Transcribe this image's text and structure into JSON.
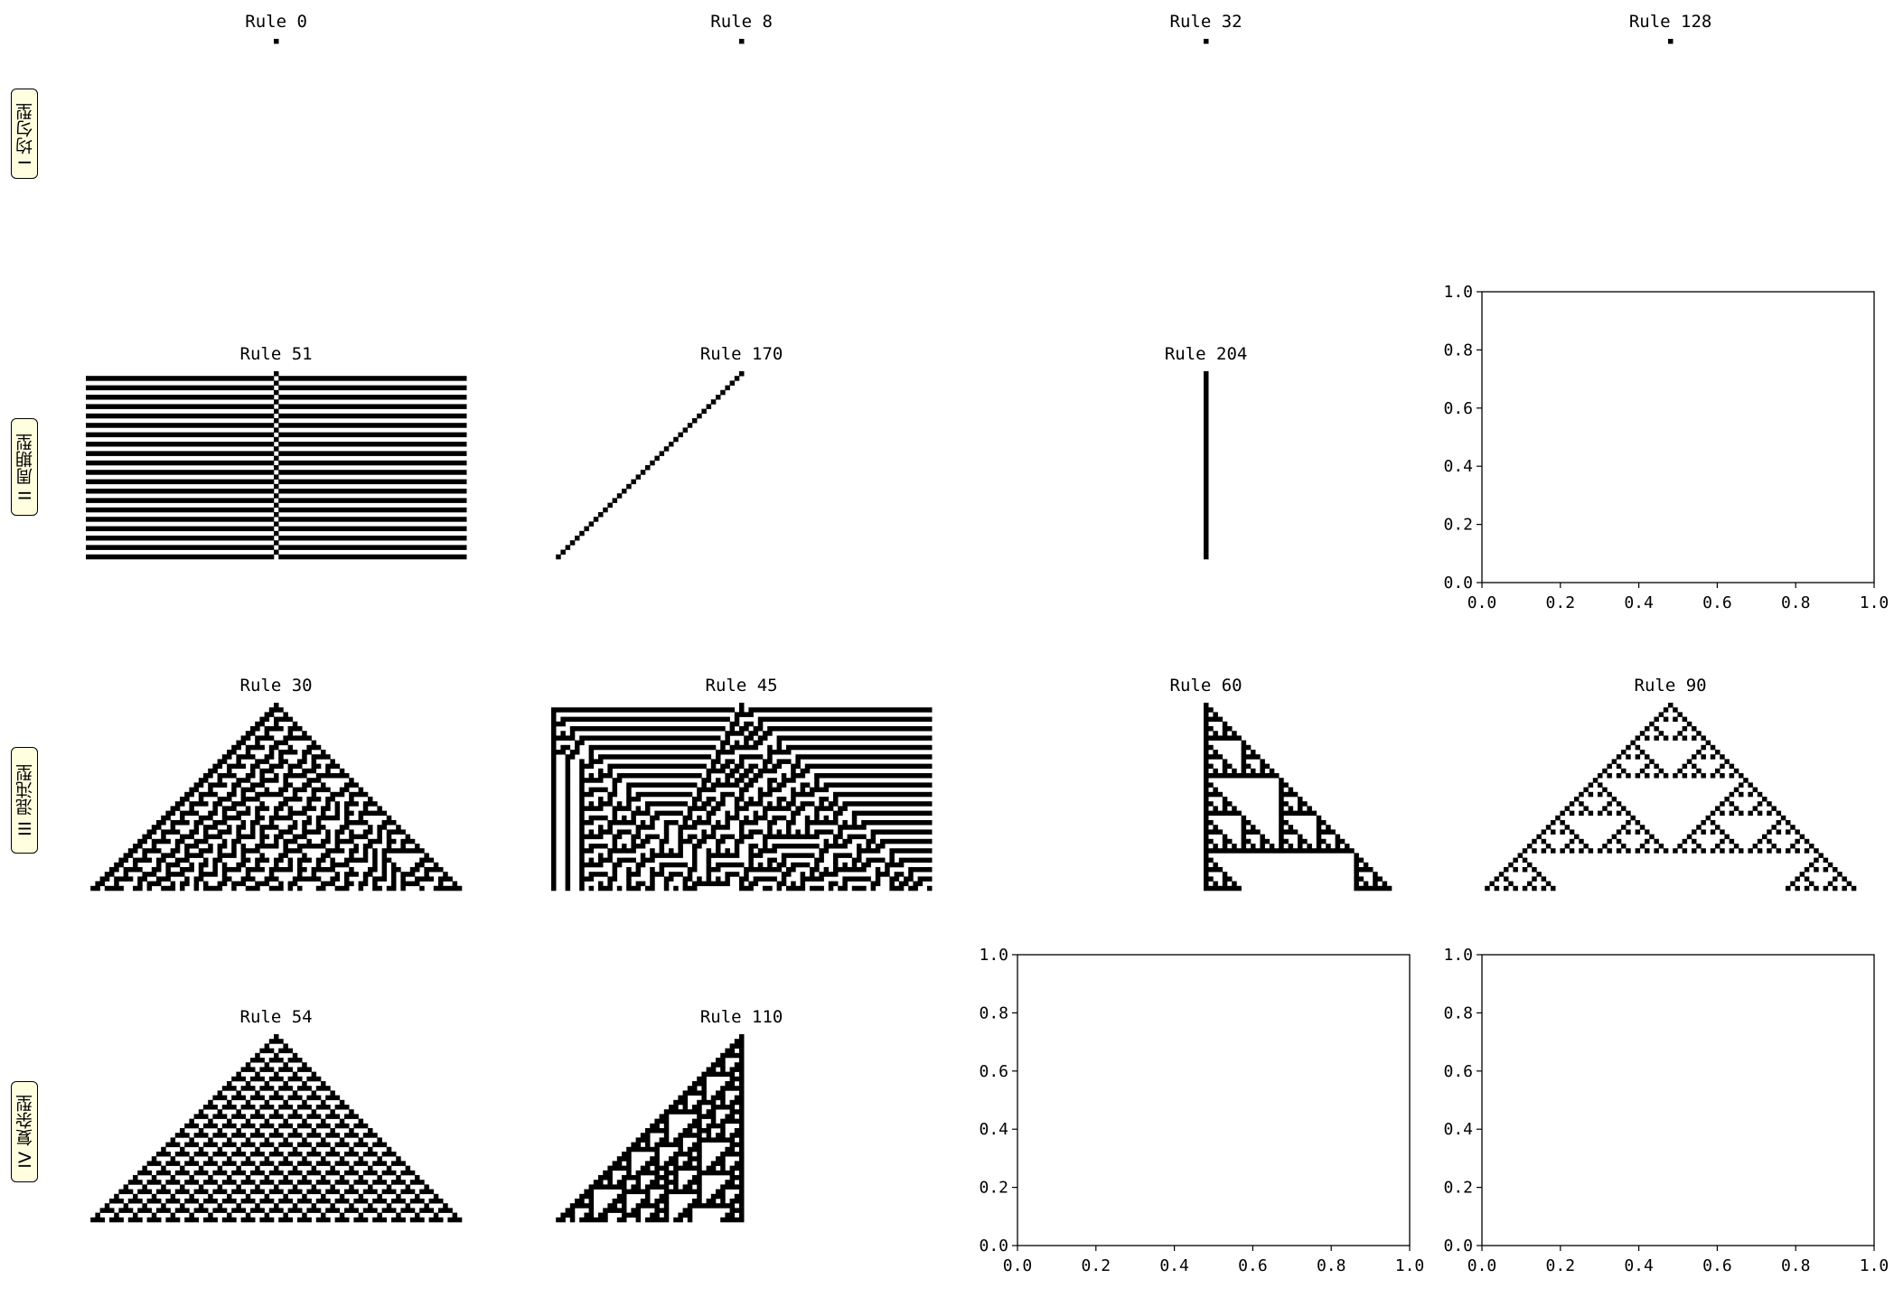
{
  "row_labels": [
    "I 均匀型",
    "II 周期型",
    "III 混沌型",
    "IV 复杂型"
  ],
  "chart_data": {
    "type": "cellular-automaton-grid",
    "generations": 40,
    "grid_width": 81,
    "initial_condition": "single cell",
    "panels": [
      {
        "title": "Rule 0",
        "rule": 0,
        "row": 0,
        "col": 0
      },
      {
        "title": "Rule 8",
        "rule": 8,
        "row": 0,
        "col": 1
      },
      {
        "title": "Rule 32",
        "rule": 32,
        "row": 0,
        "col": 2
      },
      {
        "title": "Rule 128",
        "rule": 128,
        "row": 0,
        "col": 3
      },
      {
        "title": "Rule 51",
        "rule": 51,
        "row": 1,
        "col": 0
      },
      {
        "title": "Rule 170",
        "rule": 170,
        "row": 1,
        "col": 1
      },
      {
        "title": "Rule 204",
        "rule": 204,
        "row": 1,
        "col": 2
      },
      {
        "title": "Rule 30",
        "rule": 30,
        "row": 2,
        "col": 0
      },
      {
        "title": "Rule 45",
        "rule": 45,
        "row": 2,
        "col": 1
      },
      {
        "title": "Rule 60",
        "rule": 60,
        "row": 2,
        "col": 2
      },
      {
        "title": "Rule 90",
        "rule": 90,
        "row": 2,
        "col": 3
      },
      {
        "title": "Rule 54",
        "rule": 54,
        "row": 3,
        "col": 0
      },
      {
        "title": "Rule 110",
        "rule": 110,
        "row": 3,
        "col": 1
      }
    ],
    "empty_axes": [
      {
        "row": 1,
        "col": 3,
        "xlim": [
          0,
          1
        ],
        "ylim": [
          0,
          1
        ],
        "xticks": [
          "0.0",
          "0.2",
          "0.4",
          "0.6",
          "0.8",
          "1.0"
        ],
        "yticks": [
          "0.0",
          "0.2",
          "0.4",
          "0.6",
          "0.8",
          "1.0"
        ]
      },
      {
        "row": 3,
        "col": 2,
        "xlim": [
          0,
          1
        ],
        "ylim": [
          0,
          1
        ],
        "xticks": [
          "0.0",
          "0.2",
          "0.4",
          "0.6",
          "0.8",
          "1.0"
        ],
        "yticks": [
          "0.0",
          "0.2",
          "0.4",
          "0.6",
          "0.8",
          "1.0"
        ]
      },
      {
        "row": 3,
        "col": 3,
        "xlim": [
          0,
          1
        ],
        "ylim": [
          0,
          1
        ],
        "xticks": [
          "0.0",
          "0.2",
          "0.4",
          "0.6",
          "0.8",
          "1.0"
        ],
        "yticks": [
          "0.0",
          "0.2",
          "0.4",
          "0.6",
          "0.8",
          "1.0"
        ]
      }
    ],
    "colors": {
      "alive": "#000000",
      "dead": "#ffffff"
    }
  }
}
